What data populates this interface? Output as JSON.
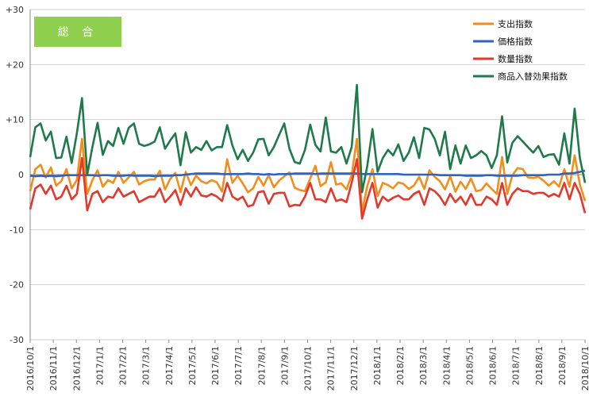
{
  "badge": "総 合",
  "chart_data": {
    "type": "line",
    "title": "総 合",
    "ylim": [
      -30,
      30
    ],
    "y_ticks": [
      "+30",
      "+20",
      "+10",
      "0",
      "-10",
      "-20",
      "-30"
    ],
    "x_tick_labels": [
      "2016/10/1",
      "2016/11/1",
      "2016/12/1",
      "2017/1/1",
      "2017/2/1",
      "2017/3/1",
      "2017/4/1",
      "2017/5/1",
      "2017/6/1",
      "2017/7/1",
      "2017/8/1",
      "2017/9/1",
      "2017/10/1",
      "2017/11/1",
      "2017/12/1",
      "2018/1/1",
      "2018/2/1",
      "2018/3/1",
      "2018/4/1",
      "2018/5/1",
      "2018/6/1",
      "2018/7/1",
      "2018/8/1",
      "2018/9/1",
      "2018/10/1"
    ],
    "x_note": "weekly observations from 2016/10/1 to 2018/10/1",
    "grid": "horizontal",
    "legend_position": "top-right",
    "series": [
      {
        "name": "支出指数",
        "color": "#f28e1c",
        "values": [
          -3.0,
          1.0,
          1.8,
          -0.5,
          1.3,
          -2.0,
          -1.2,
          1.0,
          -2.5,
          -1.0,
          6.5,
          -3.5,
          -1.0,
          0.8,
          -2.2,
          -1.0,
          -1.5,
          0.5,
          -1.5,
          -0.5,
          0.5,
          -1.8,
          -1.2,
          -0.9,
          -0.9,
          0.7,
          -2.7,
          -0.8,
          0.3,
          -3.2,
          0.5,
          -1.9,
          -0.2,
          -1.2,
          -1.6,
          -1.0,
          -1.4,
          -3.1,
          2.8,
          -1.5,
          -0.2,
          -1.6,
          -3.2,
          -2.5,
          -0.4,
          -2.0,
          -0.1,
          -2.3,
          -1.1,
          -0.3,
          0.4,
          -2.4,
          -2.8,
          -3.0,
          -0.7,
          1.6,
          -2.1,
          -1.4,
          2.3,
          -1.8,
          -1.6,
          -2.7,
          -0.1,
          6.5,
          -6.8,
          -2.1,
          1.0,
          -3.9,
          -1.5,
          -1.9,
          -2.5,
          -1.4,
          -1.7,
          -2.6,
          -2.0,
          -0.4,
          -2.6,
          0.8,
          -0.4,
          -1.2,
          -2.7,
          -0.3,
          -3.1,
          -1.3,
          -2.6,
          -0.7,
          -3.0,
          -2.8,
          -1.6,
          -2.6,
          -3.5,
          3.2,
          -3.5,
          -0.1,
          1.2,
          1.0,
          -0.5,
          -0.6,
          -0.4,
          -1.1,
          -2.0,
          -1.2,
          -2.2,
          1.0,
          -2.2,
          3.5,
          -1.8,
          -4.8
        ]
      },
      {
        "name": "価格指数",
        "color": "#2f63c0",
        "values": [
          -0.2,
          -0.3,
          -0.2,
          -0.3,
          -0.2,
          -0.3,
          -0.2,
          -0.1,
          -0.1,
          -0.1,
          -0.1,
          -0.1,
          -0.1,
          -0.2,
          -0.1,
          -0.1,
          -0.2,
          -0.2,
          -0.2,
          -0.1,
          -0.2,
          -0.2,
          -0.2,
          -0.2,
          -0.3,
          -0.2,
          -0.2,
          -0.2,
          -0.1,
          -0.1,
          0.0,
          0.1,
          0.2,
          0.2,
          0.2,
          0.2,
          0.2,
          0.1,
          0.1,
          0.1,
          0.1,
          0.1,
          0.2,
          0.1,
          0.1,
          0.0,
          0.1,
          0.0,
          0.1,
          0.1,
          0.1,
          0.2,
          0.2,
          0.2,
          0.2,
          0.1,
          0.2,
          0.2,
          0.2,
          0.2,
          0.2,
          0.2,
          0.2,
          0.2,
          0.1,
          0.1,
          0.1,
          0.1,
          0.1,
          0.1,
          0.1,
          0.1,
          0.0,
          0.0,
          0.0,
          0.0,
          0.0,
          0.0,
          0.0,
          -0.1,
          -0.1,
          -0.1,
          -0.1,
          -0.1,
          -0.2,
          -0.2,
          -0.2,
          -0.2,
          -0.1,
          -0.1,
          -0.2,
          -0.2,
          -0.2,
          -0.2,
          -0.2,
          -0.1,
          -0.1,
          -0.1,
          -0.1,
          -0.1,
          0.0,
          0.0,
          0.0,
          0.2,
          0.2,
          0.3,
          0.5,
          0.7
        ]
      },
      {
        "name": "数量指数",
        "color": "#e2392e",
        "values": [
          -6.3,
          -2.5,
          -1.8,
          -3.5,
          -2.0,
          -4.5,
          -4.0,
          -2.0,
          -4.5,
          -3.5,
          3.0,
          -6.5,
          -3.5,
          -3.0,
          -5.0,
          -4.0,
          -4.2,
          -2.5,
          -4.0,
          -3.5,
          -3.0,
          -5.0,
          -4.5,
          -4.0,
          -4.0,
          -2.5,
          -5.0,
          -4.0,
          -2.8,
          -5.5,
          -2.5,
          -4.0,
          -2.3,
          -3.8,
          -4.0,
          -3.5,
          -4.0,
          -4.8,
          -1.5,
          -4.0,
          -4.6,
          -4.0,
          -5.8,
          -5.5,
          -3.2,
          -3.0,
          -5.3,
          -3.5,
          -3.3,
          -3.3,
          -5.8,
          -5.5,
          -5.6,
          -4.0,
          -1.5,
          -4.5,
          -4.5,
          -5.0,
          -2.5,
          -4.8,
          -4.5,
          -5.0,
          -1.5,
          2.8,
          -8.0,
          -4.5,
          -1.5,
          -6.0,
          -4.0,
          -4.8,
          -4.2,
          -3.8,
          -4.5,
          -4.5,
          -3.5,
          -3.0,
          -5.5,
          -2.5,
          -3.0,
          -4.0,
          -5.5,
          -3.5,
          -5.0,
          -4.0,
          -5.5,
          -3.5,
          -5.5,
          -5.5,
          -4.0,
          -4.5,
          -5.5,
          -1.5,
          -5.5,
          -3.5,
          -2.5,
          -3.0,
          -3.0,
          -3.5,
          -3.3,
          -3.3,
          -4.0,
          -3.5,
          -4.0,
          -1.5,
          -4.5,
          -1.5,
          -3.5,
          -7.0
        ]
      },
      {
        "name": "商品入替効果指数",
        "color": "#1f7a4a",
        "values": [
          3.2,
          8.6,
          9.3,
          6.2,
          7.8,
          3.0,
          3.1,
          6.9,
          2.1,
          7.5,
          13.9,
          0.0,
          5.0,
          9.4,
          3.6,
          6.1,
          5.2,
          8.5,
          5.6,
          8.5,
          9.3,
          5.6,
          5.2,
          5.5,
          6.0,
          8.6,
          4.7,
          6.2,
          7.5,
          1.7,
          7.7,
          4.0,
          5.0,
          4.5,
          6.1,
          4.4,
          5.0,
          5.0,
          9.0,
          5.3,
          2.8,
          4.5,
          2.5,
          4.0,
          6.4,
          6.5,
          3.5,
          5.0,
          7.2,
          9.3,
          4.7,
          2.3,
          2.0,
          4.5,
          9.1,
          5.4,
          4.2,
          10.4,
          4.2,
          4.0,
          5.0,
          2.0,
          5.0,
          16.3,
          -3.2,
          1.5,
          8.3,
          0.5,
          3.0,
          4.5,
          3.5,
          5.5,
          2.5,
          4.0,
          6.8,
          3.0,
          8.5,
          8.2,
          6.5,
          3.5,
          7.8,
          1.0,
          5.3,
          2.0,
          5.3,
          3.0,
          3.5,
          4.3,
          3.5,
          1.2,
          3.5,
          10.6,
          2.2,
          5.8,
          7.0,
          6.0,
          5.0,
          4.0,
          5.2,
          3.2,
          3.6,
          3.7,
          1.8,
          7.5,
          2.0,
          12.0,
          3.0,
          -1.5
        ]
      }
    ]
  }
}
